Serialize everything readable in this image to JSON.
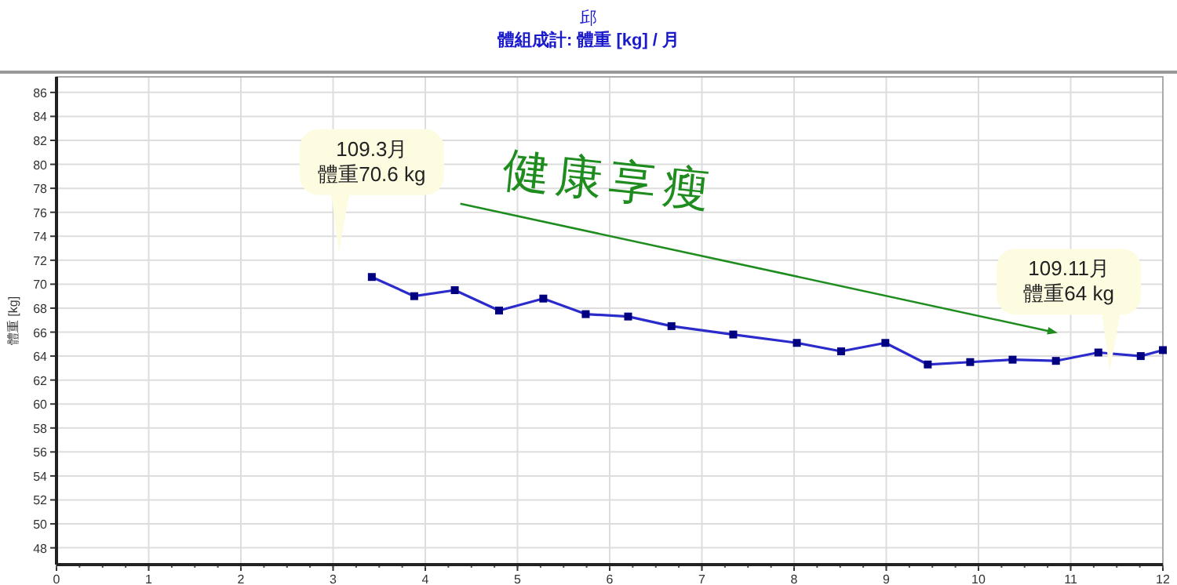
{
  "chart_data": {
    "type": "line",
    "title": "邱",
    "subtitle": "體組成計: 體重 [kg] / 月",
    "ylabel": "體重 [kg]",
    "xlim": [
      0,
      12
    ],
    "xticks": [
      0,
      1,
      2,
      3,
      4,
      5,
      6,
      7,
      8,
      9,
      10,
      11,
      12
    ],
    "ylim": [
      46.6,
      87.3
    ],
    "yticks": [
      48,
      50,
      52,
      54,
      56,
      58,
      60,
      62,
      64,
      66,
      68,
      70,
      72,
      74,
      76,
      78,
      80,
      82,
      84,
      86
    ],
    "grid": true,
    "marker": "square",
    "line_style": "solid",
    "series": [
      {
        "color": "#2b2bcc",
        "x": [
          3.42,
          3.88,
          4.32,
          4.8,
          5.28,
          5.74,
          6.2,
          6.67,
          7.34,
          8.03,
          8.51,
          8.99,
          9.45,
          9.91,
          10.37,
          10.84,
          11.3,
          11.76,
          12.0
        ],
        "values": [
          70.6,
          69.0,
          69.5,
          67.8,
          68.8,
          67.5,
          67.3,
          66.5,
          65.8,
          65.1,
          64.4,
          65.1,
          63.3,
          63.5,
          63.7,
          63.6,
          64.3,
          64.0,
          64.5
        ]
      }
    ],
    "annotations": [
      "109.3月",
      "體重70.6 kg",
      "109.11月",
      "體重64 kg",
      "健康享瘦"
    ]
  }
}
